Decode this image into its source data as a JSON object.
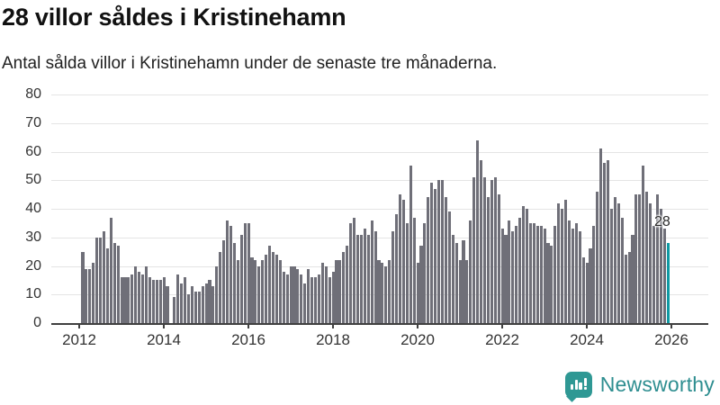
{
  "header": {
    "title": "28 villor såldes i Kristinehamn",
    "subtitle": "Antal sålda villor i Kristinehamn under de senaste tre månaderna."
  },
  "annotation": {
    "last_value_label": "28"
  },
  "logo": {
    "text": "Newsworthy",
    "icon": "newsworthy-speech-bubble-bar-chart-icon"
  },
  "colors": {
    "bar": "#6f6f78",
    "highlight_bar": "#0f9aa3",
    "gridline": "#e4e4e4",
    "axis": "#404040",
    "title": "#111111",
    "logo_teal": "#2f9894"
  },
  "chart_data": {
    "type": "bar",
    "title": "28 villor såldes i Kristinehamn",
    "subtitle": "Antal sålda villor i Kristinehamn under de senaste tre månaderna.",
    "frequency": "monthly",
    "start": "2012-02",
    "end": "2025-12",
    "ylim": [
      0,
      80
    ],
    "grid": "horizontal",
    "y_ticks": [
      80,
      70,
      60,
      50,
      40,
      30,
      20,
      10,
      0
    ],
    "x_ticks": [
      "2012",
      "2014",
      "2016",
      "2018",
      "2020",
      "2022",
      "2024",
      "2026"
    ],
    "highlight_last": true,
    "last_value": 28,
    "values": [
      25,
      19,
      19,
      21,
      30,
      30,
      32,
      26,
      37,
      28,
      27,
      16,
      16,
      16,
      17,
      20,
      18,
      17,
      20,
      16,
      15,
      15,
      15,
      16,
      13,
      0,
      9,
      17,
      14,
      16,
      10,
      13,
      11,
      11,
      13,
      14,
      15,
      13,
      20,
      25,
      29,
      36,
      34,
      28,
      22,
      31,
      35,
      35,
      23,
      22,
      20,
      22,
      24,
      27,
      25,
      24,
      22,
      18,
      17,
      20,
      20,
      19,
      17,
      14,
      19,
      16,
      16,
      17,
      21,
      20,
      16,
      18,
      22,
      22,
      25,
      27,
      35,
      37,
      31,
      31,
      33,
      31,
      36,
      32,
      22,
      21,
      20,
      22,
      32,
      38,
      45,
      43,
      35,
      55,
      37,
      21,
      27,
      35,
      44,
      49,
      47,
      50,
      50,
      44,
      39,
      31,
      28,
      22,
      29,
      22,
      36,
      51,
      64,
      57,
      51,
      44,
      50,
      51,
      45,
      33,
      31,
      36,
      32,
      34,
      37,
      41,
      40,
      35,
      35,
      34,
      34,
      33,
      28,
      27,
      34,
      42,
      40,
      43,
      36,
      33,
      35,
      32,
      23,
      21,
      26,
      34,
      46,
      61,
      56,
      57,
      40,
      44,
      42,
      37,
      24,
      25,
      31,
      45,
      45,
      55,
      46,
      42,
      34,
      45,
      40,
      33,
      28
    ]
  }
}
